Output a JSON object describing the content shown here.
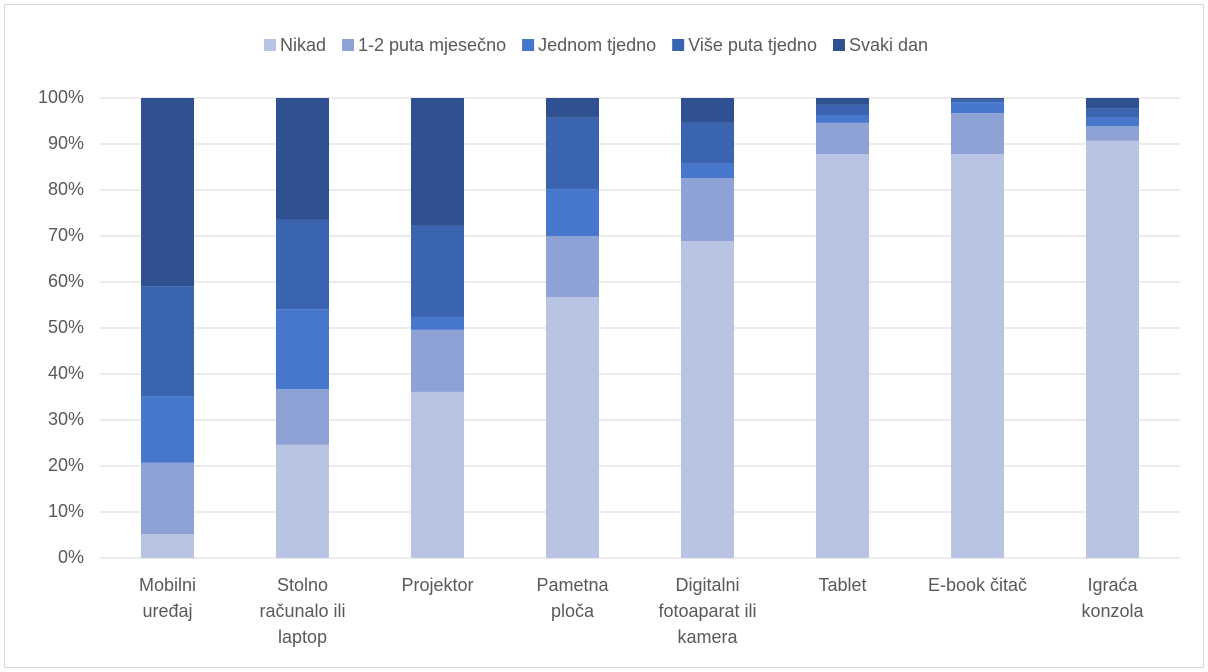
{
  "chart_data": {
    "type": "stacked_bar",
    "categories": [
      "Mobilni uređaj",
      "Stolno računalo ili laptop",
      "Projektor",
      "Pametna ploča",
      "Digitalni fotoaparat ili kamera",
      "Tablet",
      "E-book čitač",
      "Igraća konzola"
    ],
    "series": [
      {
        "name": "Nikad",
        "color": "#b9c3e4",
        "values": [
          5.2,
          24.6,
          36.1,
          56.7,
          68.9,
          87.8,
          87.8,
          90.7
        ]
      },
      {
        "name": "1-2 puta mjesečno",
        "color": "#8fa2d6",
        "values": [
          15.5,
          12.1,
          13.5,
          13.3,
          13.7,
          6.8,
          8.9,
          3.2
        ]
      },
      {
        "name": "Jednom tjedno",
        "color": "#4677cc",
        "values": [
          14.5,
          17.4,
          2.8,
          10.2,
          3.1,
          1.7,
          2.4,
          1.8
        ]
      },
      {
        "name": "Više puta tjedno",
        "color": "#3a64b0",
        "values": [
          23.9,
          19.4,
          19.8,
          15.5,
          8.9,
          2.2,
          0.5,
          2.1
        ]
      },
      {
        "name": "Svaki dan",
        "color": "#2f5192",
        "values": [
          40.9,
          26.5,
          27.8,
          4.3,
          5.4,
          1.5,
          0.4,
          2.2
        ]
      }
    ],
    "ylim": [
      0,
      100
    ],
    "yticks": [
      {
        "value": 0,
        "label": "0%"
      },
      {
        "value": 10,
        "label": "10%"
      },
      {
        "value": 20,
        "label": "20%"
      },
      {
        "value": 30,
        "label": "30%"
      },
      {
        "value": 40,
        "label": "40%"
      },
      {
        "value": 50,
        "label": "50%"
      },
      {
        "value": 60,
        "label": "60%"
      },
      {
        "value": 70,
        "label": "70%"
      },
      {
        "value": 80,
        "label": "80%"
      },
      {
        "value": 90,
        "label": "90%"
      },
      {
        "value": 100,
        "label": "100%"
      }
    ],
    "grid": true,
    "legend": "top"
  }
}
